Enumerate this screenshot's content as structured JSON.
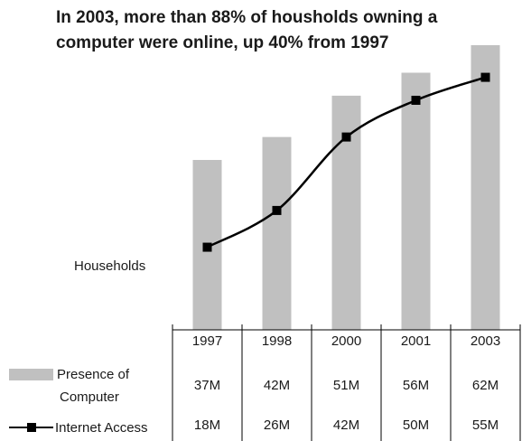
{
  "title_lines": [
    "In 2003, more than 88% of housholds owning a",
    "computer were online, up 40% from 1997"
  ],
  "chart_data": {
    "type": "bar",
    "title": "In 2003, more than 88% of housholds owning a computer were online, up 40% from 1997",
    "ylabel": "Households",
    "categories": [
      "1997",
      "1998",
      "2000",
      "2001",
      "2003"
    ],
    "series": [
      {
        "name": "Presence of Computer",
        "type": "bar",
        "values": [
          37,
          42,
          51,
          56,
          62
        ],
        "value_labels": [
          "37M",
          "42M",
          "51M",
          "56M",
          "62M"
        ]
      },
      {
        "name": "Internet Access",
        "type": "line",
        "values": [
          18,
          26,
          42,
          50,
          55
        ],
        "value_labels": [
          "18M",
          "26M",
          "42M",
          "50M",
          "55M"
        ]
      }
    ],
    "legend_labels": [
      [
        "Presence of",
        "Computer"
      ],
      [
        "Internet Access"
      ]
    ],
    "ylim": [
      0,
      62
    ],
    "grid": false,
    "legend": "data-table-left",
    "colors": {
      "bar": "#c0c0c0",
      "line": "#000000",
      "marker": "#000000",
      "table_lines": "#000000"
    }
  }
}
